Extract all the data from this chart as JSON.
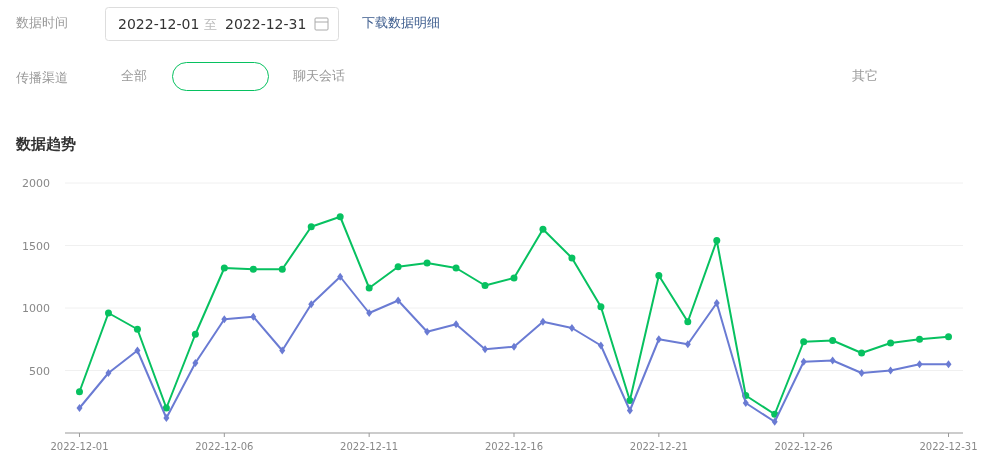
{
  "chart_data": {
    "type": "line",
    "title": "数据趋势",
    "annotations": [
      "数据时间",
      "2022-12-01",
      "至",
      "2022-12-31",
      "下载数据明细",
      "传播渠道",
      "全部",
      "聊天会话",
      "其它"
    ],
    "x": [
      "2022-12-01",
      "2022-12-02",
      "2022-12-03",
      "2022-12-04",
      "2022-12-05",
      "2022-12-06",
      "2022-12-07",
      "2022-12-08",
      "2022-12-09",
      "2022-12-10",
      "2022-12-11",
      "2022-12-12",
      "2022-12-13",
      "2022-12-14",
      "2022-12-15",
      "2022-12-16",
      "2022-12-17",
      "2022-12-18",
      "2022-12-19",
      "2022-12-20",
      "2022-12-21",
      "2022-12-22",
      "2022-12-23",
      "2022-12-24",
      "2022-12-25",
      "2022-12-26",
      "2022-12-27",
      "2022-12-28",
      "2022-12-29",
      "2022-12-30",
      "2022-12-31"
    ],
    "series": [
      {
        "color": "#07c160",
        "marker": "circle",
        "values": [
          330,
          960,
          830,
          200,
          790,
          1320,
          1310,
          1310,
          1650,
          1730,
          1160,
          1330,
          1360,
          1320,
          1180,
          1240,
          1630,
          1400,
          1010,
          260,
          1260,
          890,
          1540,
          300,
          150,
          730,
          740,
          640,
          720,
          750,
          770
        ]
      },
      {
        "color": "#6a7bd3",
        "marker": "diamond",
        "values": [
          200,
          480,
          660,
          120,
          560,
          910,
          930,
          660,
          1030,
          1250,
          960,
          1060,
          810,
          870,
          670,
          690,
          890,
          840,
          700,
          180,
          750,
          710,
          1040,
          240,
          90,
          570,
          580,
          480,
          500,
          550,
          550
        ]
      }
    ],
    "xlim": [
      "2022-11-30T12:00",
      "2022-12-31T12:00"
    ],
    "xticks": [
      "2022-12-01",
      "2022-12-06",
      "2022-12-11",
      "2022-12-16",
      "2022-12-21",
      "2022-12-26",
      "2022-12-31"
    ],
    "ylim": [
      0,
      2000
    ],
    "yticks": [
      500,
      1000,
      1500,
      2000
    ],
    "grid": "y",
    "line_style": "solid"
  }
}
